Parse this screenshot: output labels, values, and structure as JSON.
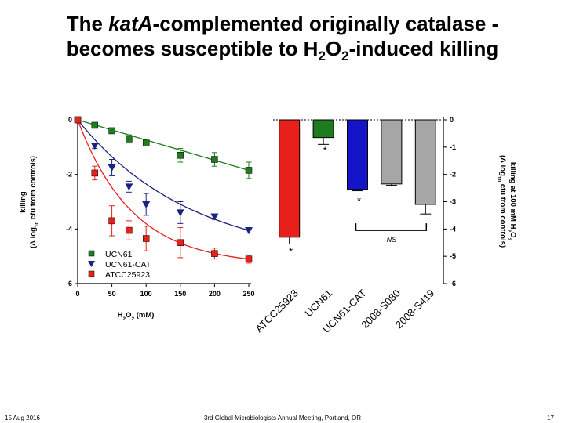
{
  "slide": {
    "title_line1_a": "The ",
    "title_line1_italic": "katA",
    "title_line1_b": "-complemented originally catalase -",
    "title_line2_a": "becomes susceptible to H",
    "title_line2_sub1": "2",
    "title_line2_b": "O",
    "title_line2_sub2": "2",
    "title_line2_c": "-induced killing",
    "footer_date": "15 Aug 2016",
    "footer_meeting": "3rd Global Microbiologists Annual Meeting, Portland, OR",
    "footer_page": "17"
  },
  "chart_data": [
    {
      "type": "scatter",
      "title": "",
      "xlabel": "H2O2 (mM)",
      "ylabel": "killing (Δ log10 cfu from controls)",
      "xlim": [
        0,
        250
      ],
      "ylim": [
        -6,
        0
      ],
      "xticks": [
        0,
        50,
        100,
        150,
        200,
        250
      ],
      "yticks": [
        0,
        -2,
        -4,
        -6
      ],
      "legend_position": "bottom-left",
      "series": [
        {
          "name": "UCN61",
          "color": "#1e7b1e",
          "marker": "square",
          "x": [
            0,
            25,
            50,
            75,
            100,
            150,
            200,
            250
          ],
          "y": [
            0,
            -0.2,
            -0.4,
            -0.7,
            -0.85,
            -1.3,
            -1.45,
            -1.85
          ],
          "err": [
            0.05,
            0.1,
            0.1,
            0.15,
            0.1,
            0.25,
            0.25,
            0.3
          ]
        },
        {
          "name": "UCN61-CAT",
          "color": "#1a237e",
          "marker": "triangle-down",
          "x": [
            0,
            25,
            50,
            75,
            100,
            150,
            200,
            250
          ],
          "y": [
            0,
            -0.95,
            -1.75,
            -2.45,
            -3.1,
            -3.4,
            -3.55,
            -4.05
          ],
          "err": [
            0.05,
            0.1,
            0.3,
            0.2,
            0.4,
            0.4,
            0.1,
            0.1
          ]
        },
        {
          "name": "ATCC25923",
          "color": "#e8201c",
          "marker": "square",
          "x": [
            0,
            25,
            50,
            75,
            100,
            150,
            200,
            250
          ],
          "y": [
            0,
            -1.95,
            -3.7,
            -4.05,
            -4.35,
            -4.5,
            -4.9,
            -5.1
          ],
          "err": [
            0.05,
            0.25,
            0.55,
            0.35,
            0.45,
            0.55,
            0.2,
            0.15
          ]
        }
      ]
    },
    {
      "type": "bar",
      "title": "",
      "ylabel": "killing at 100 mM H2O2 (Δ log10 cfu from controls)",
      "ylim": [
        -6,
        0
      ],
      "yticks": [
        0,
        -1,
        -2,
        -3,
        -4,
        -5,
        -6
      ],
      "categories": [
        "ATCC25923",
        "UCN61",
        "UCN61-CAT",
        "2008-S080",
        "2008-S419"
      ],
      "values": [
        -4.3,
        -0.65,
        -2.55,
        -2.35,
        -3.1
      ],
      "errors": [
        0.25,
        0.25,
        0.05,
        0.05,
        0.35
      ],
      "colors": [
        "#e8201c",
        "#1e7b1e",
        "#1414c8",
        "#a6a6a6",
        "#a6a6a6"
      ],
      "significance": [
        "*",
        "*",
        "*"
      ],
      "ns_label": "NS"
    }
  ]
}
